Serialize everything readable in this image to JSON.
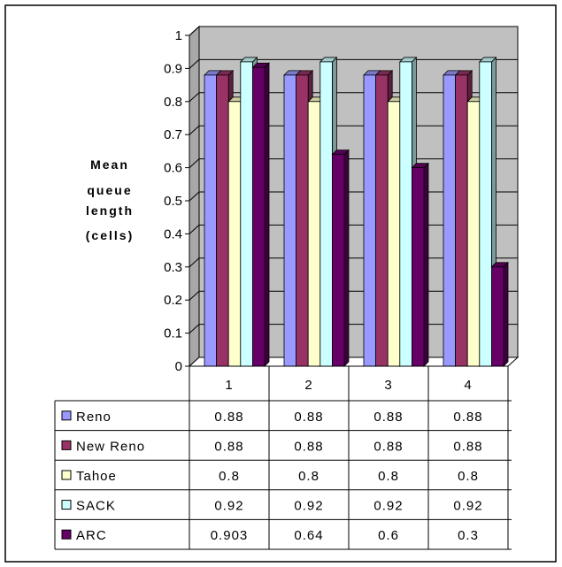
{
  "chart_data": {
    "type": "bar",
    "ylabel_lines": [
      "Mean",
      "queue",
      "length",
      "(cells)"
    ],
    "categories": [
      "1",
      "2",
      "3",
      "4"
    ],
    "ylim": [
      0,
      1
    ],
    "yticks": [
      "0",
      "0.1",
      "0.2",
      "0.3",
      "0.4",
      "0.5",
      "0.6",
      "0.7",
      "0.8",
      "0.9",
      "1"
    ],
    "grid": true,
    "legend": "data-table",
    "series": [
      {
        "name": "Reno",
        "color": "#9999ff",
        "values": [
          0.88,
          0.88,
          0.88,
          0.88
        ],
        "labels": [
          "0.88",
          "0.88",
          "0.88",
          "0.88"
        ]
      },
      {
        "name": "New Reno",
        "color": "#993366",
        "values": [
          0.88,
          0.88,
          0.88,
          0.88
        ],
        "labels": [
          "0.88",
          "0.88",
          "0.88",
          "0.88"
        ]
      },
      {
        "name": "Tahoe",
        "color": "#ffffcc",
        "values": [
          0.8,
          0.8,
          0.8,
          0.8
        ],
        "labels": [
          "0.8",
          "0.8",
          "0.8",
          "0.8"
        ]
      },
      {
        "name": "SACK",
        "color": "#ccffff",
        "values": [
          0.92,
          0.92,
          0.92,
          0.92
        ],
        "labels": [
          "0.92",
          "0.92",
          "0.92",
          "0.92"
        ]
      },
      {
        "name": "ARC",
        "color": "#660066",
        "values": [
          0.903,
          0.64,
          0.6,
          0.3
        ],
        "labels": [
          "0.903",
          "0.64",
          "0.6",
          "0.3"
        ]
      }
    ]
  }
}
